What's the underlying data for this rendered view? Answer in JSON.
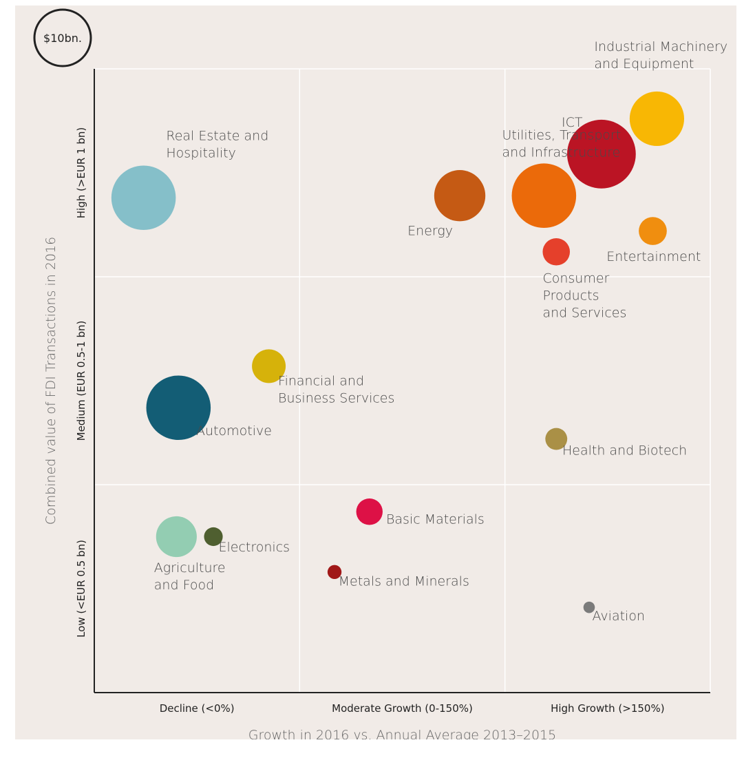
{
  "chart_data": {
    "type": "scatter",
    "variant": "bubble",
    "xlabel": "Growth in 2016 vs. Annual Average 2013–2015",
    "ylabel": "Combined value of FDI Transactions in 2016",
    "x_ticks": [
      "Decline (<0%)",
      "Moderate Growth (0-150%)",
      "High Growth (>150%)"
    ],
    "y_ticks": [
      "Low (<EUR 0.5 bn)",
      "Medium (EUR 0.5-1 bn)",
      "High (>EUR 1 bn)"
    ],
    "xlim": [
      0,
      3
    ],
    "ylim": [
      0,
      3
    ],
    "grid": true,
    "size_legend": {
      "label": "$10bn.",
      "value": 10
    },
    "points": [
      {
        "name": "Real Estate and\nHospitality",
        "x": 0.24,
        "y": 2.38,
        "value": 9.5,
        "color": "#85bfc9",
        "label_pos": "above-right"
      },
      {
        "name": "Financial and\nBusiness Services",
        "x": 0.85,
        "y": 1.57,
        "value": 2.6,
        "color": "#d6b20a",
        "label_pos": "below-right"
      },
      {
        "name": "Automotive",
        "x": 0.41,
        "y": 1.37,
        "value": 9.5,
        "color": "#135d75",
        "label_pos": "below-right"
      },
      {
        "name": "Agriculture\nand Food",
        "x": 0.4,
        "y": 0.75,
        "value": 3.8,
        "color": "#93cdb2",
        "label_pos": "below-left"
      },
      {
        "name": "Electronics",
        "x": 0.58,
        "y": 0.75,
        "value": 0.8,
        "color": "#4f5f30",
        "label_pos": "below-right"
      },
      {
        "name": "Basic Materials",
        "x": 1.34,
        "y": 0.87,
        "value": 1.6,
        "color": "#dd1146",
        "label_pos": "right"
      },
      {
        "name": "Metals and Minerals",
        "x": 1.17,
        "y": 0.58,
        "value": 0.45,
        "color": "#a11818",
        "label_pos": "below-right"
      },
      {
        "name": "Energy",
        "x": 1.78,
        "y": 2.39,
        "value": 6.0,
        "color": "#c55a14",
        "label_pos": "below-left"
      },
      {
        "name": "Utilities, Transport\nand Infrastructure",
        "x": 2.19,
        "y": 2.39,
        "value": 9.5,
        "color": "#eb6a0a",
        "label_pos": "above-left"
      },
      {
        "name": "ICT",
        "x": 2.47,
        "y": 2.59,
        "value": 10.8,
        "color": "#bb1424",
        "label_pos": "above-left"
      },
      {
        "name": "Industrial Machinery\nand Equipment",
        "x": 2.74,
        "y": 2.76,
        "value": 6.8,
        "color": "#f8b704",
        "label_pos": "above"
      },
      {
        "name": "Entertainment",
        "x": 2.72,
        "y": 2.22,
        "value": 1.8,
        "color": "#f08e0f",
        "label_pos": "below"
      },
      {
        "name": "Consumer\nProducts\nand Services",
        "x": 2.25,
        "y": 2.12,
        "value": 1.7,
        "color": "#e5402b",
        "label_pos": "below"
      },
      {
        "name": "Health and Biotech",
        "x": 2.25,
        "y": 1.22,
        "value": 1.1,
        "color": "#aa9046",
        "label_pos": "below-right"
      },
      {
        "name": "Aviation",
        "x": 2.41,
        "y": 0.41,
        "value": 0.3,
        "color": "#7b7b7b",
        "label_pos": "below-right"
      }
    ]
  }
}
